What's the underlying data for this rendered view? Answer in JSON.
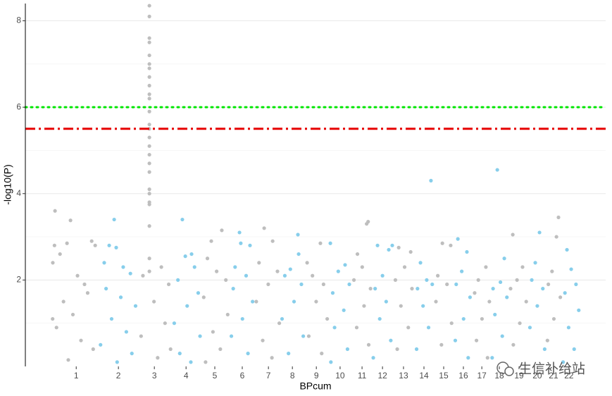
{
  "chart_data": {
    "type": "scatter",
    "xlabel": "BPcum",
    "ylabel": "-log10(P)",
    "xlim": [
      -138,
      3011
    ],
    "ylim": [
      0,
      8.4
    ],
    "xticks": [
      {
        "value": 138,
        "label": "1"
      },
      {
        "value": 367,
        "label": "2"
      },
      {
        "value": 562,
        "label": "3"
      },
      {
        "value": 734,
        "label": "4"
      },
      {
        "value": 890,
        "label": "5"
      },
      {
        "value": 1039,
        "label": "6"
      },
      {
        "value": 1181,
        "label": "7"
      },
      {
        "value": 1311,
        "label": "8"
      },
      {
        "value": 1441,
        "label": "9"
      },
      {
        "value": 1570,
        "label": "10"
      },
      {
        "value": 1689,
        "label": "11"
      },
      {
        "value": 1800,
        "label": "12"
      },
      {
        "value": 1914,
        "label": "13"
      },
      {
        "value": 2025,
        "label": "14"
      },
      {
        "value": 2132,
        "label": "15"
      },
      {
        "value": 2239,
        "label": "16"
      },
      {
        "value": 2339,
        "label": "17"
      },
      {
        "value": 2434,
        "label": "18"
      },
      {
        "value": 2541,
        "label": "19"
      },
      {
        "value": 2640,
        "label": "20"
      },
      {
        "value": 2728,
        "label": "21"
      },
      {
        "value": 2812,
        "label": "22"
      }
    ],
    "yticks": [
      2,
      4,
      6,
      8
    ],
    "minor_yticks": [
      1,
      3,
      5,
      7
    ],
    "grid": true,
    "hlines": [
      {
        "value": 6,
        "color": "#00e600",
        "style": "dotted"
      },
      {
        "value": 5.5,
        "color": "#e60000",
        "style": "dashdot"
      }
    ],
    "series": [
      {
        "color": "#bebebe",
        "x": [
          23,
          107,
          88,
          20,
          222,
          241,
          11,
          50,
          145,
          183,
          69,
          120,
          31,
          164,
          230,
          95,
          200,
          10
        ],
        "values": [
          3.6,
          3.38,
          2.85,
          2.8,
          2.9,
          2.8,
          2.4,
          2.6,
          2.1,
          1.9,
          1.5,
          1.2,
          0.9,
          0.6,
          0.4,
          0.15,
          1.7,
          1.1
        ]
      },
      {
        "color": "#87ceeb",
        "x": [
          344,
          317,
          355,
          290,
          432,
          393,
          300,
          380,
          460,
          330,
          410,
          270,
          440,
          360
        ],
        "values": [
          3.4,
          2.8,
          2.75,
          2.4,
          2.15,
          2.3,
          1.8,
          1.6,
          1.4,
          1.1,
          0.8,
          0.5,
          0.3,
          0.1
        ]
      },
      {
        "color": "#bebebe",
        "x": [
          535,
          535,
          535,
          535,
          535,
          535,
          535,
          535,
          535,
          535,
          535,
          535,
          535,
          535,
          535,
          535,
          535,
          535,
          535,
          535,
          535,
          535,
          535,
          535,
          535,
          535,
          500,
          600,
          640,
          560,
          620,
          490,
          650,
          580
        ],
        "values": [
          8.35,
          8.1,
          7.6,
          7.5,
          7.2,
          7.0,
          6.9,
          6.7,
          6.5,
          6.3,
          6.2,
          5.9,
          5.6,
          5.5,
          5.3,
          5.1,
          4.9,
          4.7,
          4.5,
          4.1,
          4.0,
          3.8,
          3.75,
          3.25,
          2.5,
          2.2,
          2.1,
          2.3,
          1.9,
          1.5,
          1.0,
          0.7,
          0.4,
          0.2
        ]
      },
      {
        "color": "#87ceeb",
        "x": [
          714,
          764,
          730,
          780,
          690,
          800,
          740,
          670,
          810,
          700,
          760
        ],
        "values": [
          3.4,
          2.6,
          2.55,
          2.3,
          2.0,
          1.7,
          1.4,
          1.0,
          0.7,
          0.3,
          0.1
        ]
      },
      {
        "color": "#bebebe",
        "x": [
          928,
          871,
          850,
          900,
          950,
          830,
          960,
          880,
          920,
          840
        ],
        "values": [
          3.15,
          2.9,
          2.5,
          2.2,
          2.0,
          1.6,
          1.2,
          0.8,
          0.4,
          0.1
        ]
      },
      {
        "color": "#87ceeb",
        "x": [
          1024,
          1031,
          1081,
          1000,
          1060,
          990,
          1095,
          1040,
          980,
          1070
        ],
        "values": [
          3.1,
          2.85,
          2.8,
          2.3,
          2.1,
          1.8,
          1.5,
          1.1,
          0.7,
          0.3
        ]
      },
      {
        "color": "#bebebe",
        "x": [
          1158,
          1204,
          1130,
          1230,
          1180,
          1115,
          1240,
          1150,
          1200
        ],
        "values": [
          3.2,
          2.9,
          2.4,
          2.2,
          1.9,
          1.5,
          1.0,
          0.6,
          0.2
        ]
      },
      {
        "color": "#87ceeb",
        "x": [
          1341,
          1345,
          1300,
          1270,
          1360,
          1320,
          1255,
          1370,
          1290
        ],
        "values": [
          3.05,
          2.6,
          2.25,
          2.1,
          1.9,
          1.5,
          1.1,
          0.7,
          0.3
        ]
      },
      {
        "color": "#bebebe",
        "x": [
          1463,
          1391,
          1420,
          1480,
          1440,
          1500,
          1400,
          1470
        ],
        "values": [
          2.85,
          2.4,
          2.1,
          1.9,
          1.5,
          1.1,
          0.7,
          0.3
        ]
      },
      {
        "color": "#87ceeb",
        "x": [
          1517,
          1597,
          1560,
          1620,
          1530,
          1590,
          1540,
          1610,
          1520
        ],
        "values": [
          2.85,
          2.35,
          2.2,
          1.9,
          1.7,
          1.3,
          0.9,
          0.4,
          0.1
        ]
      },
      {
        "color": "#bebebe",
        "x": [
          1722,
          1714,
          1664,
          1690,
          1645,
          1735,
          1700,
          1660,
          1725
        ],
        "values": [
          3.35,
          3.3,
          2.6,
          2.3,
          2.0,
          1.8,
          1.4,
          0.9,
          0.5
        ]
      },
      {
        "color": "#87ceeb",
        "x": [
          1773,
          1853,
          1834,
          1800,
          1760,
          1820,
          1785,
          1845,
          1750
        ],
        "values": [
          2.8,
          2.8,
          2.7,
          2.1,
          1.8,
          1.5,
          1.1,
          0.6,
          0.2
        ]
      },
      {
        "color": "#bebebe",
        "x": [
          1888,
          1953,
          1920,
          1870,
          1960,
          1900,
          1940,
          1880
        ],
        "values": [
          2.75,
          2.65,
          2.3,
          2.0,
          1.8,
          1.4,
          0.9,
          0.4
        ]
      },
      {
        "color": "#87ceeb",
        "x": [
          2063,
          2006,
          2040,
          1990,
          2070,
          2020,
          2050,
          1985
        ],
        "values": [
          4.3,
          2.4,
          2.0,
          1.8,
          1.9,
          1.4,
          0.9,
          0.4
        ]
      },
      {
        "color": "#bebebe",
        "x": [
          2125,
          2170,
          2100,
          2150,
          2090,
          2175,
          2120
        ],
        "values": [
          2.85,
          2.8,
          2.1,
          1.9,
          1.5,
          1.0,
          0.5
        ]
      },
      {
        "color": "#87ceeb",
        "x": [
          2209,
          2258,
          2230,
          2200,
          2275,
          2240,
          2195,
          2265
        ],
        "values": [
          2.95,
          2.65,
          2.2,
          1.9,
          1.6,
          1.1,
          0.6,
          0.2
        ]
      },
      {
        "color": "#bebebe",
        "x": [
          2361,
          2320,
          2300,
          2380,
          2340,
          2310,
          2370
        ],
        "values": [
          2.3,
          2.0,
          1.7,
          1.5,
          1.1,
          0.6,
          0.2
        ]
      },
      {
        "color": "#87ceeb",
        "x": [
          2423,
          2461,
          2440,
          2400,
          2475,
          2410,
          2450,
          2395
        ],
        "values": [
          4.55,
          2.5,
          1.95,
          1.8,
          1.6,
          1.2,
          0.7,
          0.2
        ]
      },
      {
        "color": "#bebebe",
        "x": [
          2507,
          2560,
          2530,
          2495,
          2580,
          2545,
          2510
        ],
        "values": [
          3.05,
          2.3,
          2.0,
          1.8,
          1.5,
          1.0,
          0.5
        ]
      },
      {
        "color": "#87ceeb",
        "x": [
          2652,
          2629,
          2610,
          2670,
          2640,
          2600,
          2680
        ],
        "values": [
          3.1,
          2.4,
          2.0,
          1.8,
          1.4,
          0.9,
          0.4
        ]
      },
      {
        "color": "#bebebe",
        "x": [
          2755,
          2744,
          2720,
          2700,
          2765,
          2730,
          2695
        ],
        "values": [
          3.45,
          3.0,
          2.2,
          1.9,
          1.6,
          1.1,
          0.6
        ]
      },
      {
        "color": "#87ceeb",
        "x": [
          2801,
          2824,
          2850,
          2790,
          2865,
          2810,
          2840,
          2780
        ],
        "values": [
          2.7,
          2.25,
          1.9,
          1.7,
          1.3,
          0.9,
          0.4,
          0.1
        ]
      }
    ]
  },
  "watermark": "生信补给站"
}
